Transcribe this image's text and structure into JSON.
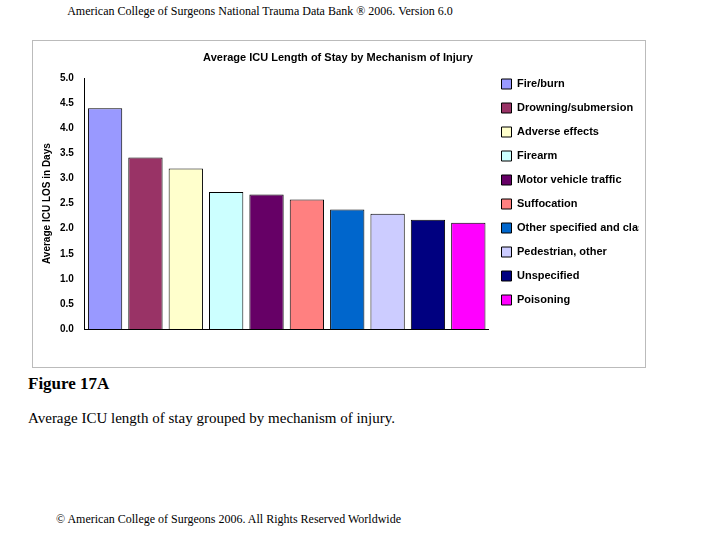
{
  "header": "American College of Surgeons National Trauma Data Bank ®  2006. Version 6.0",
  "chart_data": {
    "type": "bar",
    "title": "Average ICU Length of Stay by Mechanism of Injury",
    "y_label": "Average ICU LOS in Days",
    "categories": [
      "Fire/burn",
      "Drowning/submersion",
      "Adverse effects",
      "Firearm",
      "Motor vehicle traffic",
      "Suffocation",
      "Other specified and classifiable",
      "Pedestrian, other",
      "Unspecified",
      "Poisoning"
    ],
    "values": [
      4.4,
      3.42,
      3.2,
      2.73,
      2.68,
      2.58,
      2.38,
      2.3,
      2.18,
      2.12
    ],
    "colors": [
      "#9999ff",
      "#993366",
      "#ffffcc",
      "#ccffff",
      "#660066",
      "#ff8080",
      "#0066cc",
      "#ccccff",
      "#000080",
      "#ff00ff"
    ],
    "ylim": [
      0,
      5
    ],
    "yticks": [
      {
        "value": 0,
        "label": "0.0"
      },
      0.5,
      {
        "value": 1,
        "label": "1.0"
      },
      1.5,
      {
        "value": 2,
        "label": "2.0"
      },
      2.5,
      {
        "value": 3,
        "label": "3.0"
      },
      3.5,
      {
        "value": 4,
        "label": "4.0"
      },
      4.5,
      {
        "value": 5,
        "label": "5.0"
      }
    ],
    "grid": false,
    "legend": "right",
    "tick_labels": "y"
  },
  "figure_label": "Figure 17A",
  "caption": "Average ICU length of stay grouped by mechanism of injury.",
  "footer": "© American College of Surgeons 2006. All Rights Reserved Worldwide"
}
